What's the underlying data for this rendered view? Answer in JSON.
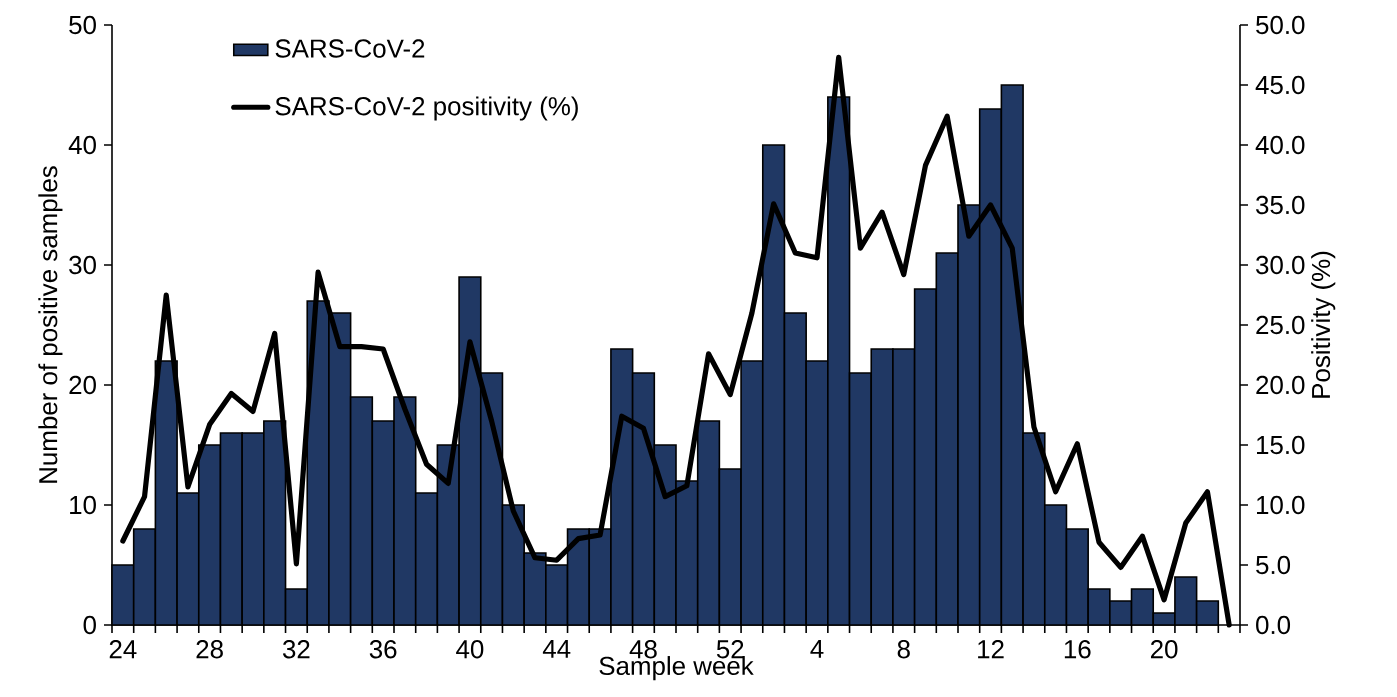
{
  "chart_data": {
    "type": "bar",
    "xlabel": "Sample week",
    "ylabel": "Number of positive samples",
    "y2label": "Positivity (%)",
    "categories": [
      "24",
      null,
      null,
      null,
      "28",
      null,
      null,
      null,
      "32",
      null,
      null,
      null,
      "36",
      null,
      null,
      null,
      "40",
      null,
      null,
      null,
      "44",
      null,
      null,
      null,
      "48",
      null,
      null,
      null,
      "52",
      null,
      null,
      null,
      "4",
      null,
      null,
      null,
      "8",
      null,
      null,
      null,
      "12",
      null,
      null,
      null,
      "16",
      null,
      null,
      null,
      "20",
      null,
      null,
      null
    ],
    "series": [
      {
        "name": "SARS-CoV-2",
        "color": "#203864",
        "values": [
          5,
          8,
          22,
          11,
          15,
          16,
          16,
          17,
          3,
          27,
          26,
          19,
          17,
          19,
          11,
          15,
          29,
          21,
          10,
          6,
          5,
          8,
          8,
          23,
          21,
          15,
          12,
          17,
          13,
          22,
          40,
          26,
          22,
          44,
          21,
          23,
          23,
          28,
          31,
          35,
          43,
          45,
          16,
          10,
          8,
          3,
          2,
          3,
          1,
          4,
          2,
          null
        ]
      },
      {
        "name": "SARS-CoV-2 positivity (%)",
        "type": "line",
        "axis": "y2",
        "color": "#000000",
        "values": [
          7.0,
          10.7,
          27.5,
          11.5,
          16.7,
          19.3,
          17.8,
          24.3,
          5.1,
          29.4,
          23.2,
          23.2,
          23.0,
          18.0,
          13.4,
          11.8,
          23.6,
          17.0,
          9.5,
          5.6,
          5.4,
          7.2,
          7.5,
          17.4,
          16.4,
          10.7,
          11.6,
          22.6,
          19.2,
          26.0,
          35.1,
          31.0,
          30.6,
          47.3,
          31.4,
          34.4,
          29.2,
          38.3,
          42.4,
          32.4,
          35.0,
          31.4,
          16.5,
          11.1,
          15.1,
          6.9,
          4.8,
          7.4,
          2.1,
          8.5,
          11.1,
          0
        ]
      }
    ],
    "ylim": [
      0,
      50
    ],
    "yticks": [
      0,
      10,
      20,
      30,
      40,
      50
    ],
    "y2lim": [
      0,
      50
    ],
    "y2ticks": [
      {
        "value": 0,
        "label": "0.0"
      },
      {
        "value": 5,
        "label": "5.0"
      },
      {
        "value": 10,
        "label": "10.0"
      },
      {
        "value": 15,
        "label": "15.0"
      },
      {
        "value": 20,
        "label": "20.0"
      },
      {
        "value": 25,
        "label": "25.0"
      },
      {
        "value": 30,
        "label": "30.0"
      },
      {
        "value": 35,
        "label": "35.0"
      },
      {
        "value": 40,
        "label": "40.0"
      },
      {
        "value": 45,
        "label": "45.0"
      },
      {
        "value": 50,
        "label": "50.0"
      }
    ],
    "legend": "top left"
  }
}
